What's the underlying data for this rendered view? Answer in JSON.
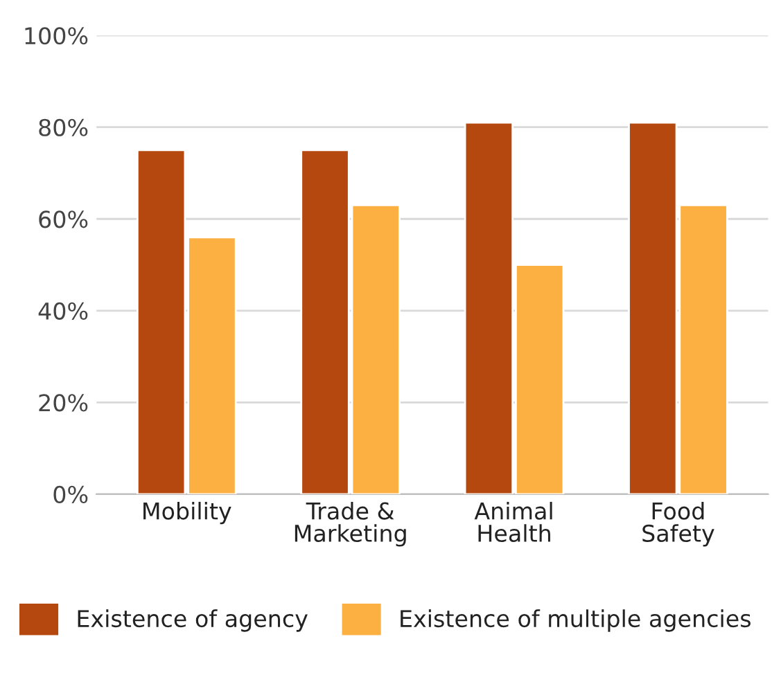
{
  "chart_data": {
    "type": "bar",
    "categories": [
      "Mobility",
      "Trade &\nMarketing",
      "Animal\nHealth",
      "Food\nSafety"
    ],
    "series": [
      {
        "name": "Existence of agency",
        "color": "#b5480f",
        "values": [
          75,
          75,
          81,
          81
        ]
      },
      {
        "name": "Existence of multiple agencies",
        "color": "#fbb041",
        "values": [
          56,
          63,
          50,
          63
        ]
      }
    ],
    "ylim": [
      0,
      100
    ],
    "yticks": [
      {
        "value": 0,
        "label": "0%"
      },
      {
        "value": 20,
        "label": "20%"
      },
      {
        "value": 40,
        "label": "40%"
      },
      {
        "value": 60,
        "label": "60%"
      },
      {
        "value": 80,
        "label": "80%"
      },
      {
        "value": 100,
        "label": "100%"
      }
    ],
    "grid": "y",
    "legend": "bottom"
  }
}
